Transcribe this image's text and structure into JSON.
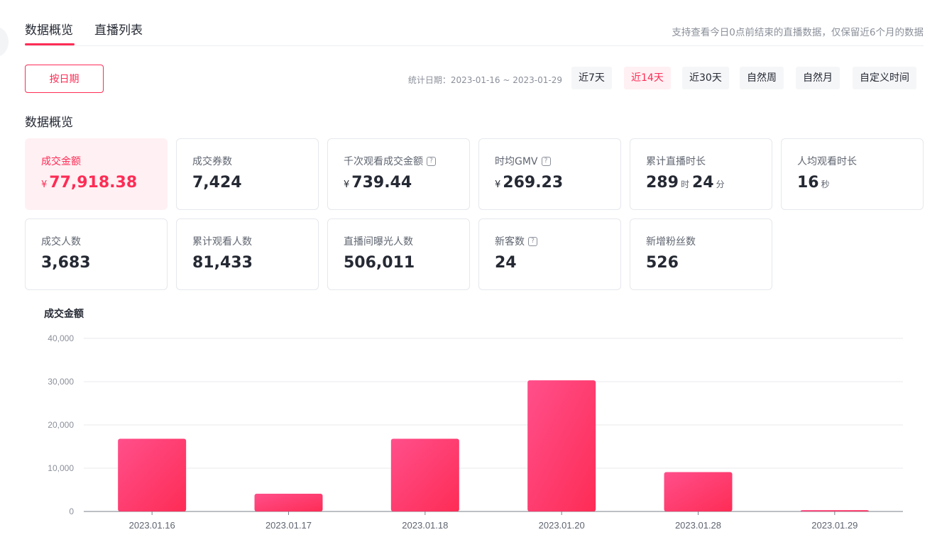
{
  "tabs": [
    {
      "label": "数据概览",
      "active": true
    },
    {
      "label": "直播列表",
      "active": false
    }
  ],
  "tab_hint": "支持查看今日0点前结束的直播数据，仅保留近6个月的数据",
  "date_mode_button": "按日期",
  "stat_range_label": "统计日期：2023-01-16 ~ 2023-01-29",
  "range_options": [
    {
      "label": "近7天",
      "active": false
    },
    {
      "label": "近14天",
      "active": true
    },
    {
      "label": "近30天",
      "active": false
    },
    {
      "label": "自然周",
      "active": false
    },
    {
      "label": "自然月",
      "active": false
    },
    {
      "label": "自定义时间",
      "active": false
    }
  ],
  "section_title": "数据概览",
  "metrics": {
    "gmv": {
      "label": "成交金额",
      "currency": "¥",
      "value": "77,918.38"
    },
    "coupons": {
      "label": "成交券数",
      "value": "7,424"
    },
    "gpm": {
      "label": "千次观看成交金额",
      "currency": "¥",
      "value": "739.44",
      "help": "?"
    },
    "gmv_per_hour": {
      "label": "时均GMV",
      "currency": "¥",
      "value": "269.23",
      "help": "?"
    },
    "live_duration": {
      "label": "累计直播时长",
      "hours": "289",
      "hours_unit": "时",
      "minutes": "24",
      "minutes_unit": "分"
    },
    "avg_watch": {
      "label": "人均观看时长",
      "value": "16",
      "unit": "秒"
    },
    "buyers": {
      "label": "成交人数",
      "value": "3,683"
    },
    "viewers": {
      "label": "累计观看人数",
      "value": "81,433"
    },
    "exposure": {
      "label": "直播间曝光人数",
      "value": "506,011"
    },
    "new_customers": {
      "label": "新客数",
      "value": "24",
      "help": "?"
    },
    "new_fans": {
      "label": "新增粉丝数",
      "value": "526"
    }
  },
  "chart_data": {
    "type": "bar",
    "title": "成交金额",
    "categories": [
      "2023.01.16",
      "2023.01.17",
      "2023.01.18",
      "2023.01.20",
      "2023.01.28",
      "2023.01.29"
    ],
    "values": [
      16800,
      4100,
      16800,
      30300,
      9100,
      300
    ],
    "yticks": [
      "40,000",
      "30,000",
      "20,000",
      "10,000",
      "0"
    ],
    "ylim": [
      0,
      40000
    ],
    "grid": true,
    "colors": {
      "bar_start": "#ff4f8b",
      "bar_end": "#fe2c55",
      "grid": "#e8eaee",
      "axis": "#7a7f8a",
      "tick_text": "#8a8f99"
    }
  }
}
